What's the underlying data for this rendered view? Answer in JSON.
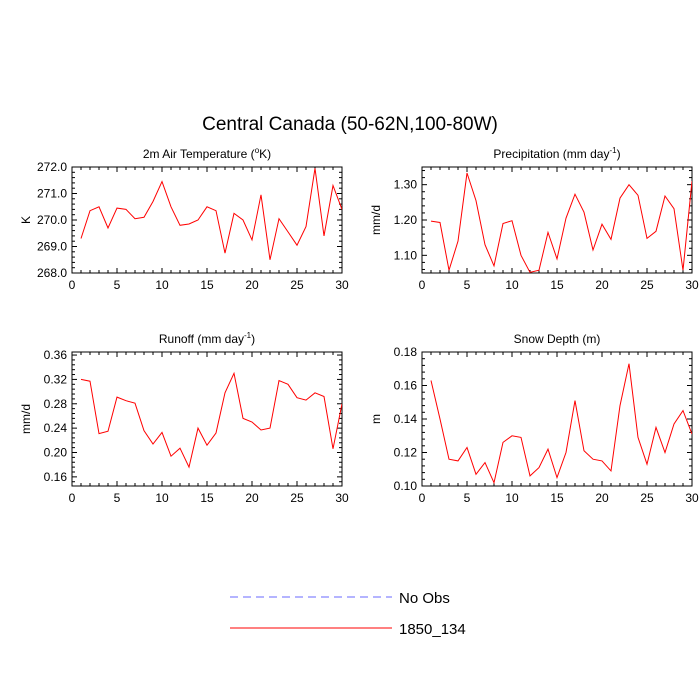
{
  "figure_title": "Central Canada (50-62N,100-80W)",
  "legend": {
    "items": [
      {
        "label": "No Obs",
        "color": "#6a6aff",
        "dashed": true
      },
      {
        "label": "1850_134",
        "color": "#ff0000",
        "dashed": false
      }
    ]
  },
  "chart_data": [
    {
      "type": "line",
      "title_main": "2m Air Temperature (",
      "title_sup": "o",
      "title_tail": "K)",
      "xlabel": "",
      "ylabel": "K",
      "xlim": [
        0,
        30
      ],
      "ylim": [
        268.0,
        272.0
      ],
      "xticks": [
        0,
        5,
        10,
        15,
        20,
        25,
        30
      ],
      "xtick_labels": [
        "0",
        "5",
        "10",
        "15",
        "20",
        "25",
        "30"
      ],
      "yticks": [
        268.0,
        269.0,
        270.0,
        271.0,
        272.0
      ],
      "ytick_labels": [
        "268.0",
        "269.0",
        "270.0",
        "271.0",
        "272.0"
      ],
      "series": [
        {
          "color": "#ff0000",
          "x": [
            1,
            2,
            3,
            4,
            5,
            6,
            7,
            8,
            9,
            10,
            11,
            12,
            13,
            14,
            15,
            16,
            17,
            18,
            19,
            20,
            21,
            22,
            23,
            24,
            25,
            26,
            27,
            28,
            29,
            30
          ],
          "values": [
            269.3,
            270.35,
            270.5,
            269.7,
            270.45,
            270.4,
            270.05,
            270.1,
            270.7,
            271.45,
            270.5,
            269.8,
            269.85,
            270.0,
            270.5,
            270.35,
            268.75,
            270.25,
            270.0,
            269.25,
            270.95,
            268.5,
            270.05,
            269.55,
            269.05,
            269.75,
            271.95,
            269.4,
            271.3,
            270.4
          ]
        }
      ]
    },
    {
      "type": "line",
      "title_main": "Precipitation (mm day",
      "title_sup": "-1",
      "title_tail": ")",
      "xlabel": "",
      "ylabel": "mm/d",
      "xlim": [
        0,
        30
      ],
      "ylim": [
        1.05,
        1.35
      ],
      "xticks": [
        0,
        5,
        10,
        15,
        20,
        25,
        30
      ],
      "xtick_labels": [
        "0",
        "5",
        "10",
        "15",
        "20",
        "25",
        "30"
      ],
      "yticks": [
        1.1,
        1.2,
        1.3
      ],
      "ytick_labels": [
        "1.10",
        "1.20",
        "1.30"
      ],
      "series": [
        {
          "color": "#ff0000",
          "x": [
            1,
            2,
            3,
            4,
            5,
            6,
            7,
            8,
            9,
            10,
            11,
            12,
            13,
            14,
            15,
            16,
            17,
            18,
            19,
            20,
            21,
            22,
            23,
            24,
            25,
            26,
            27,
            28,
            29,
            30
          ],
          "values": [
            1.197,
            1.193,
            1.058,
            1.14,
            1.333,
            1.255,
            1.13,
            1.07,
            1.19,
            1.198,
            1.1,
            1.052,
            1.058,
            1.165,
            1.09,
            1.205,
            1.273,
            1.222,
            1.115,
            1.188,
            1.145,
            1.262,
            1.3,
            1.27,
            1.148,
            1.168,
            1.268,
            1.232,
            1.058,
            1.31
          ]
        }
      ]
    },
    {
      "type": "line",
      "title_main": "Runoff (mm day",
      "title_sup": "-1",
      "title_tail": ")",
      "xlabel": "",
      "ylabel": "mm/d",
      "xlim": [
        0,
        30
      ],
      "ylim": [
        0.145,
        0.365
      ],
      "xticks": [
        0,
        5,
        10,
        15,
        20,
        25,
        30
      ],
      "xtick_labels": [
        "0",
        "5",
        "10",
        "15",
        "20",
        "25",
        "30"
      ],
      "yticks": [
        0.16,
        0.2,
        0.24,
        0.28,
        0.32,
        0.36
      ],
      "ytick_labels": [
        "0.16",
        "0.20",
        "0.24",
        "0.28",
        "0.32",
        "0.36"
      ],
      "series": [
        {
          "color": "#ff0000",
          "x": [
            1,
            2,
            3,
            4,
            5,
            6,
            7,
            8,
            9,
            10,
            11,
            12,
            13,
            14,
            15,
            16,
            17,
            18,
            19,
            20,
            21,
            22,
            23,
            24,
            25,
            26,
            27,
            28,
            29,
            30
          ],
          "values": [
            0.32,
            0.317,
            0.231,
            0.235,
            0.291,
            0.285,
            0.281,
            0.236,
            0.214,
            0.233,
            0.194,
            0.207,
            0.176,
            0.24,
            0.212,
            0.232,
            0.298,
            0.33,
            0.256,
            0.25,
            0.237,
            0.24,
            0.318,
            0.312,
            0.29,
            0.286,
            0.298,
            0.292,
            0.206,
            0.28
          ]
        }
      ]
    },
    {
      "type": "line",
      "title_main": "Snow Depth (m)",
      "title_sup": "",
      "title_tail": "",
      "xlabel": "",
      "ylabel": "m",
      "xlim": [
        0,
        30
      ],
      "ylim": [
        0.1,
        0.18
      ],
      "xticks": [
        0,
        5,
        10,
        15,
        20,
        25,
        30
      ],
      "xtick_labels": [
        "0",
        "5",
        "10",
        "15",
        "20",
        "25",
        "30"
      ],
      "yticks": [
        0.1,
        0.12,
        0.14,
        0.16,
        0.18
      ],
      "ytick_labels": [
        "0.10",
        "0.12",
        "0.14",
        "0.16",
        "0.18"
      ],
      "series": [
        {
          "color": "#ff0000",
          "x": [
            1,
            2,
            3,
            4,
            5,
            6,
            7,
            8,
            9,
            10,
            11,
            12,
            13,
            14,
            15,
            16,
            17,
            18,
            19,
            20,
            21,
            22,
            23,
            24,
            25,
            26,
            27,
            28,
            29,
            30
          ],
          "values": [
            0.163,
            0.14,
            0.116,
            0.115,
            0.123,
            0.107,
            0.114,
            0.102,
            0.126,
            0.13,
            0.129,
            0.106,
            0.111,
            0.122,
            0.105,
            0.12,
            0.151,
            0.121,
            0.116,
            0.115,
            0.109,
            0.148,
            0.173,
            0.129,
            0.113,
            0.135,
            0.12,
            0.137,
            0.145,
            0.131
          ]
        }
      ]
    }
  ]
}
